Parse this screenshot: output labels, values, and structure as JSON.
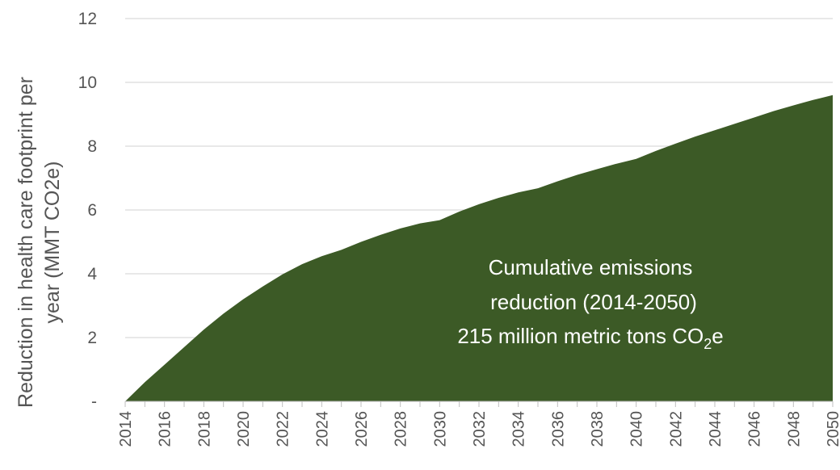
{
  "chart_data": {
    "type": "area",
    "x": [
      2014,
      2015,
      2016,
      2017,
      2018,
      2019,
      2020,
      2021,
      2022,
      2023,
      2024,
      2025,
      2026,
      2027,
      2028,
      2029,
      2030,
      2031,
      2032,
      2033,
      2034,
      2035,
      2036,
      2037,
      2038,
      2039,
      2040,
      2041,
      2042,
      2043,
      2044,
      2045,
      2046,
      2047,
      2048,
      2049,
      2050
    ],
    "series": [
      {
        "values": [
          0,
          0.6,
          1.15,
          1.7,
          2.25,
          2.75,
          3.2,
          3.6,
          3.98,
          4.3,
          4.55,
          4.75,
          5.0,
          5.22,
          5.42,
          5.58,
          5.68,
          5.95,
          6.18,
          6.38,
          6.55,
          6.68,
          6.9,
          7.1,
          7.28,
          7.45,
          7.6,
          7.85,
          8.08,
          8.3,
          8.5,
          8.7,
          8.9,
          9.1,
          9.28,
          9.45,
          9.6
        ]
      }
    ],
    "ylabel": "Reduction in health care footprint per year (MMT CO2e)",
    "ylabel_lines": [
      "Reduction in health care footprint per",
      "year (MMT CO2e)"
    ],
    "xlabel": "",
    "title": "",
    "ylim": [
      0,
      12
    ],
    "xlim": [
      2014,
      2050
    ],
    "y_ticks": [
      0,
      2,
      4,
      6,
      8,
      10,
      12
    ],
    "y_tick_labels": [
      "-",
      "2",
      "4",
      "6",
      "8",
      "10",
      "12"
    ],
    "x_tick_labels": [
      "2014",
      "2016",
      "2018",
      "2020",
      "2022",
      "2024",
      "2026",
      "2028",
      "2030",
      "2032",
      "2034",
      "2036",
      "2038",
      "2040",
      "2042",
      "2044",
      "2046",
      "2048",
      "2050"
    ],
    "grid": true,
    "fill_color": "#3c5a26",
    "annotation": {
      "line1": "Cumulative emissions",
      "line2": "reduction (2014-2050)",
      "line3_pre": "215 million metric tons CO",
      "line3_sub": "2",
      "line3_post": "e"
    }
  }
}
